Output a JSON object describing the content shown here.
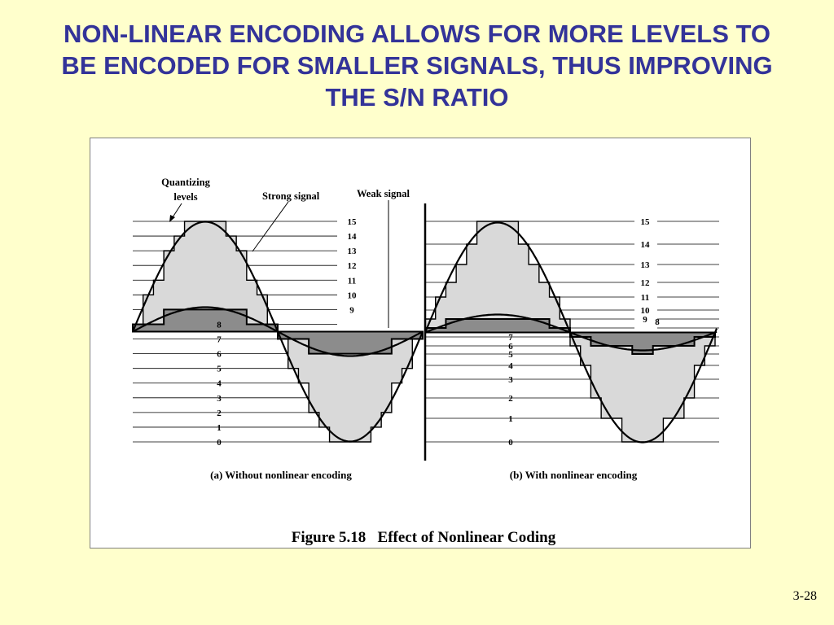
{
  "slide": {
    "title_lines": [
      "NON-LINEAR ENCODING ALLOWS FOR MORE LEVELS TO",
      "BE ENCODED FOR SMALLER SIGNALS, THUS IMPROVING",
      "THE S/N RATIO"
    ],
    "title_color": "#333399",
    "background_color": "#FFFFCC",
    "slide_number": "3-28"
  },
  "figure": {
    "annotations": {
      "quantizing_line1": "Quantizing",
      "quantizing_line2": "levels",
      "strong_signal": "Strong signal",
      "weak_signal": "Weak signal"
    },
    "panel_a": {
      "caption": "(a) Without nonlinear encoding",
      "level_labels": [
        "0",
        "1",
        "2",
        "3",
        "4",
        "5",
        "6",
        "7",
        "8",
        "9",
        "10",
        "11",
        "12",
        "13",
        "14",
        "15"
      ]
    },
    "panel_b": {
      "caption": "(b) With nonlinear encoding",
      "level_labels": [
        "0",
        "1",
        "2",
        "3",
        "4",
        "5",
        "6",
        "7",
        "8",
        "9",
        "10",
        "11",
        "12",
        "13",
        "14",
        "15"
      ]
    },
    "caption": "Figure 5.18   Effect of Nonlinear Coding",
    "colors": {
      "strong_fill": "#D9D9D9",
      "weak_fill": "#8C8C8C"
    }
  }
}
